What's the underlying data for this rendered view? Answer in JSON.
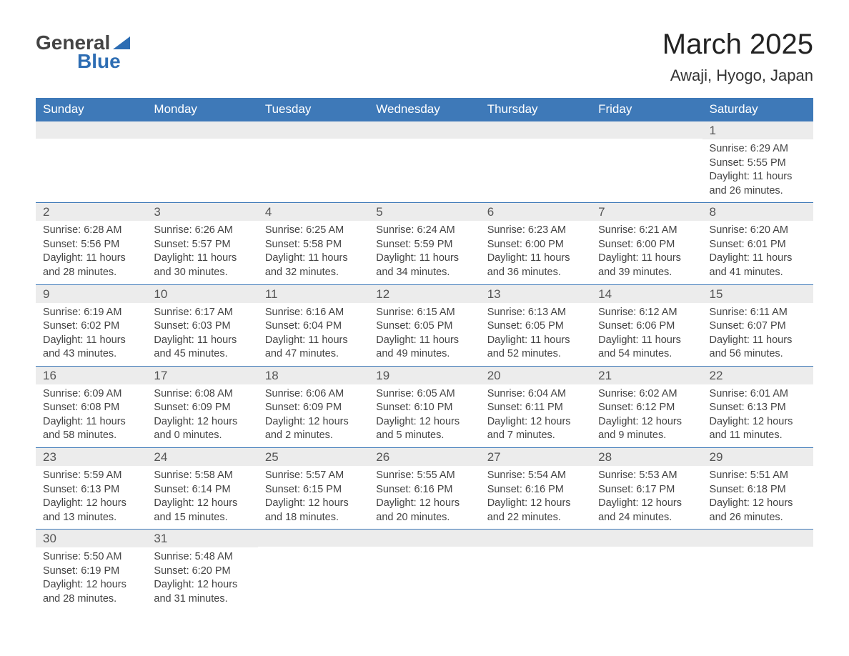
{
  "brand": {
    "word1": "General",
    "word2": "Blue"
  },
  "title": "March 2025",
  "location": "Awaji, Hyogo, Japan",
  "colors": {
    "header_bg": "#3e79b8",
    "header_text": "#ffffff",
    "daynum_bg": "#ececec",
    "row_border": "#3e79b8",
    "brand_blue": "#2d6db3",
    "body_text": "#444444"
  },
  "layout": {
    "columns": 7,
    "font_family": "Arial",
    "th_fontsize": 17,
    "daynum_fontsize": 17,
    "body_fontsize": 14.5,
    "title_fontsize": 40,
    "location_fontsize": 22
  },
  "weekdays": [
    "Sunday",
    "Monday",
    "Tuesday",
    "Wednesday",
    "Thursday",
    "Friday",
    "Saturday"
  ],
  "weeks": [
    [
      null,
      null,
      null,
      null,
      null,
      null,
      {
        "n": "1",
        "sunrise": "Sunrise: 6:29 AM",
        "sunset": "Sunset: 5:55 PM",
        "day1": "Daylight: 11 hours",
        "day2": "and 26 minutes."
      }
    ],
    [
      {
        "n": "2",
        "sunrise": "Sunrise: 6:28 AM",
        "sunset": "Sunset: 5:56 PM",
        "day1": "Daylight: 11 hours",
        "day2": "and 28 minutes."
      },
      {
        "n": "3",
        "sunrise": "Sunrise: 6:26 AM",
        "sunset": "Sunset: 5:57 PM",
        "day1": "Daylight: 11 hours",
        "day2": "and 30 minutes."
      },
      {
        "n": "4",
        "sunrise": "Sunrise: 6:25 AM",
        "sunset": "Sunset: 5:58 PM",
        "day1": "Daylight: 11 hours",
        "day2": "and 32 minutes."
      },
      {
        "n": "5",
        "sunrise": "Sunrise: 6:24 AM",
        "sunset": "Sunset: 5:59 PM",
        "day1": "Daylight: 11 hours",
        "day2": "and 34 minutes."
      },
      {
        "n": "6",
        "sunrise": "Sunrise: 6:23 AM",
        "sunset": "Sunset: 6:00 PM",
        "day1": "Daylight: 11 hours",
        "day2": "and 36 minutes."
      },
      {
        "n": "7",
        "sunrise": "Sunrise: 6:21 AM",
        "sunset": "Sunset: 6:00 PM",
        "day1": "Daylight: 11 hours",
        "day2": "and 39 minutes."
      },
      {
        "n": "8",
        "sunrise": "Sunrise: 6:20 AM",
        "sunset": "Sunset: 6:01 PM",
        "day1": "Daylight: 11 hours",
        "day2": "and 41 minutes."
      }
    ],
    [
      {
        "n": "9",
        "sunrise": "Sunrise: 6:19 AM",
        "sunset": "Sunset: 6:02 PM",
        "day1": "Daylight: 11 hours",
        "day2": "and 43 minutes."
      },
      {
        "n": "10",
        "sunrise": "Sunrise: 6:17 AM",
        "sunset": "Sunset: 6:03 PM",
        "day1": "Daylight: 11 hours",
        "day2": "and 45 minutes."
      },
      {
        "n": "11",
        "sunrise": "Sunrise: 6:16 AM",
        "sunset": "Sunset: 6:04 PM",
        "day1": "Daylight: 11 hours",
        "day2": "and 47 minutes."
      },
      {
        "n": "12",
        "sunrise": "Sunrise: 6:15 AM",
        "sunset": "Sunset: 6:05 PM",
        "day1": "Daylight: 11 hours",
        "day2": "and 49 minutes."
      },
      {
        "n": "13",
        "sunrise": "Sunrise: 6:13 AM",
        "sunset": "Sunset: 6:05 PM",
        "day1": "Daylight: 11 hours",
        "day2": "and 52 minutes."
      },
      {
        "n": "14",
        "sunrise": "Sunrise: 6:12 AM",
        "sunset": "Sunset: 6:06 PM",
        "day1": "Daylight: 11 hours",
        "day2": "and 54 minutes."
      },
      {
        "n": "15",
        "sunrise": "Sunrise: 6:11 AM",
        "sunset": "Sunset: 6:07 PM",
        "day1": "Daylight: 11 hours",
        "day2": "and 56 minutes."
      }
    ],
    [
      {
        "n": "16",
        "sunrise": "Sunrise: 6:09 AM",
        "sunset": "Sunset: 6:08 PM",
        "day1": "Daylight: 11 hours",
        "day2": "and 58 minutes."
      },
      {
        "n": "17",
        "sunrise": "Sunrise: 6:08 AM",
        "sunset": "Sunset: 6:09 PM",
        "day1": "Daylight: 12 hours",
        "day2": "and 0 minutes."
      },
      {
        "n": "18",
        "sunrise": "Sunrise: 6:06 AM",
        "sunset": "Sunset: 6:09 PM",
        "day1": "Daylight: 12 hours",
        "day2": "and 2 minutes."
      },
      {
        "n": "19",
        "sunrise": "Sunrise: 6:05 AM",
        "sunset": "Sunset: 6:10 PM",
        "day1": "Daylight: 12 hours",
        "day2": "and 5 minutes."
      },
      {
        "n": "20",
        "sunrise": "Sunrise: 6:04 AM",
        "sunset": "Sunset: 6:11 PM",
        "day1": "Daylight: 12 hours",
        "day2": "and 7 minutes."
      },
      {
        "n": "21",
        "sunrise": "Sunrise: 6:02 AM",
        "sunset": "Sunset: 6:12 PM",
        "day1": "Daylight: 12 hours",
        "day2": "and 9 minutes."
      },
      {
        "n": "22",
        "sunrise": "Sunrise: 6:01 AM",
        "sunset": "Sunset: 6:13 PM",
        "day1": "Daylight: 12 hours",
        "day2": "and 11 minutes."
      }
    ],
    [
      {
        "n": "23",
        "sunrise": "Sunrise: 5:59 AM",
        "sunset": "Sunset: 6:13 PM",
        "day1": "Daylight: 12 hours",
        "day2": "and 13 minutes."
      },
      {
        "n": "24",
        "sunrise": "Sunrise: 5:58 AM",
        "sunset": "Sunset: 6:14 PM",
        "day1": "Daylight: 12 hours",
        "day2": "and 15 minutes."
      },
      {
        "n": "25",
        "sunrise": "Sunrise: 5:57 AM",
        "sunset": "Sunset: 6:15 PM",
        "day1": "Daylight: 12 hours",
        "day2": "and 18 minutes."
      },
      {
        "n": "26",
        "sunrise": "Sunrise: 5:55 AM",
        "sunset": "Sunset: 6:16 PM",
        "day1": "Daylight: 12 hours",
        "day2": "and 20 minutes."
      },
      {
        "n": "27",
        "sunrise": "Sunrise: 5:54 AM",
        "sunset": "Sunset: 6:16 PM",
        "day1": "Daylight: 12 hours",
        "day2": "and 22 minutes."
      },
      {
        "n": "28",
        "sunrise": "Sunrise: 5:53 AM",
        "sunset": "Sunset: 6:17 PM",
        "day1": "Daylight: 12 hours",
        "day2": "and 24 minutes."
      },
      {
        "n": "29",
        "sunrise": "Sunrise: 5:51 AM",
        "sunset": "Sunset: 6:18 PM",
        "day1": "Daylight: 12 hours",
        "day2": "and 26 minutes."
      }
    ],
    [
      {
        "n": "30",
        "sunrise": "Sunrise: 5:50 AM",
        "sunset": "Sunset: 6:19 PM",
        "day1": "Daylight: 12 hours",
        "day2": "and 28 minutes."
      },
      {
        "n": "31",
        "sunrise": "Sunrise: 5:48 AM",
        "sunset": "Sunset: 6:20 PM",
        "day1": "Daylight: 12 hours",
        "day2": "and 31 minutes."
      },
      null,
      null,
      null,
      null,
      null
    ]
  ]
}
